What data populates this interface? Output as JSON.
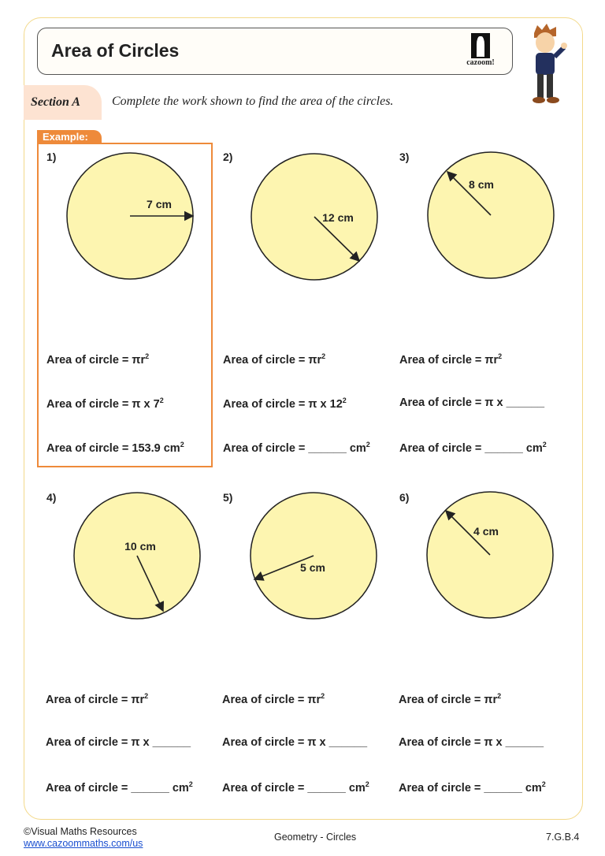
{
  "header": {
    "title": "Area of Circles",
    "logo_text": "cazoom!"
  },
  "section": {
    "label": "Section A",
    "instruction": "Complete the work shown to find the area of the circles."
  },
  "example_tag": "Example:",
  "colors": {
    "circle_fill": "#fdf5b0",
    "accent": "#ee8a3a",
    "frame": "#f3d98a"
  },
  "problems": [
    {
      "number": "1)",
      "radius_label": "7 cm",
      "lines": [
        {
          "text": "Area of circle = πr",
          "sup": "2"
        },
        {
          "text": "Area of circle = π x 7",
          "sup": "2"
        },
        {
          "text": "Area of circle = 153.9 cm",
          "sup": "2"
        }
      ]
    },
    {
      "number": "2)",
      "radius_label": "12 cm",
      "lines": [
        {
          "text": "Area of circle = πr",
          "sup": "2"
        },
        {
          "text": "Area of circle = π x 12",
          "sup": "2"
        },
        {
          "text": "Area of circle = ______ cm",
          "sup": "2"
        }
      ]
    },
    {
      "number": "3)",
      "radius_label": "8 cm",
      "lines": [
        {
          "text": "Area of circle = πr",
          "sup": "2"
        },
        {
          "text": "Area of circle = π x ______",
          "sup": ""
        },
        {
          "text": "Area of circle = ______ cm",
          "sup": "2"
        }
      ]
    },
    {
      "number": "4)",
      "radius_label": "10 cm",
      "lines": [
        {
          "text": "Area of circle = πr",
          "sup": "2"
        },
        {
          "text": "Area of circle = π x ______",
          "sup": ""
        },
        {
          "text": "Area of circle = ______ cm",
          "sup": "2"
        }
      ]
    },
    {
      "number": "5)",
      "radius_label": "5 cm",
      "lines": [
        {
          "text": "Area of circle = πr",
          "sup": "2"
        },
        {
          "text": "Area of circle = π x ______",
          "sup": ""
        },
        {
          "text": "Area of circle = ______ cm",
          "sup": "2"
        }
      ]
    },
    {
      "number": "6)",
      "radius_label": "4 cm",
      "lines": [
        {
          "text": "Area of circle = πr",
          "sup": "2"
        },
        {
          "text": "Area of circle = π x ______",
          "sup": ""
        },
        {
          "text": "Area of circle = ______ cm",
          "sup": "2"
        }
      ]
    }
  ],
  "footer": {
    "copyright": "©Visual Maths Resources",
    "url": "www.cazoommaths.com/us",
    "topic": "Geometry - Circles",
    "standard": "7.G.B.4"
  }
}
